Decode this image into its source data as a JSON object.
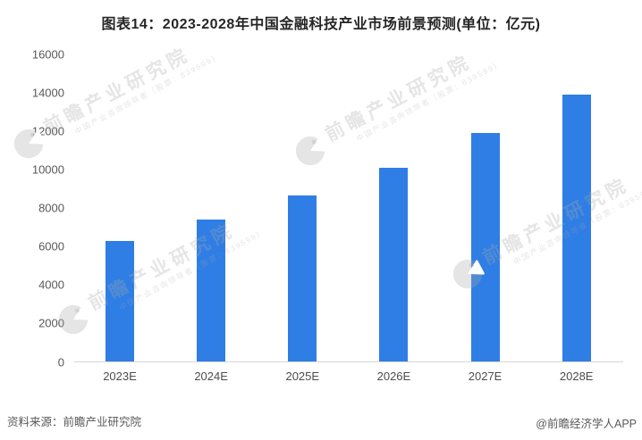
{
  "figure": {
    "title": "图表14：2023-2028年中国金融科技产业市场前景预测(单位：亿元)",
    "source": "资料来源：前瞻产业研究院",
    "credit": "@前瞻经济学人APP"
  },
  "watermark": {
    "brand": "前瞻产业研究院",
    "subtitle": "中国产业咨询领导者（股票：839599）",
    "logo": "qianzhan-circle-logo"
  },
  "colors": {
    "bar": "#2F7EE5",
    "axis_line": "#D6D6D6",
    "tick_text": "#595959",
    "title_text": "#262626",
    "footer_text": "#595959"
  },
  "chart_data": {
    "type": "bar",
    "title": "图表14：2023-2028年中国金融科技产业市场前景预测(单位：亿元)",
    "unit": "亿元",
    "categories": [
      "2023E",
      "2024E",
      "2025E",
      "2026E",
      "2027E",
      "2028E"
    ],
    "values": [
      6300,
      7400,
      8650,
      10100,
      11900,
      13900
    ],
    "xlabel": "",
    "ylabel": "",
    "ylim": [
      0,
      16000
    ],
    "yticks": [
      0,
      2000,
      4000,
      6000,
      8000,
      10000,
      12000,
      14000,
      16000
    ],
    "grid": false,
    "legend": false,
    "bar_color": "#2F7EE5"
  }
}
